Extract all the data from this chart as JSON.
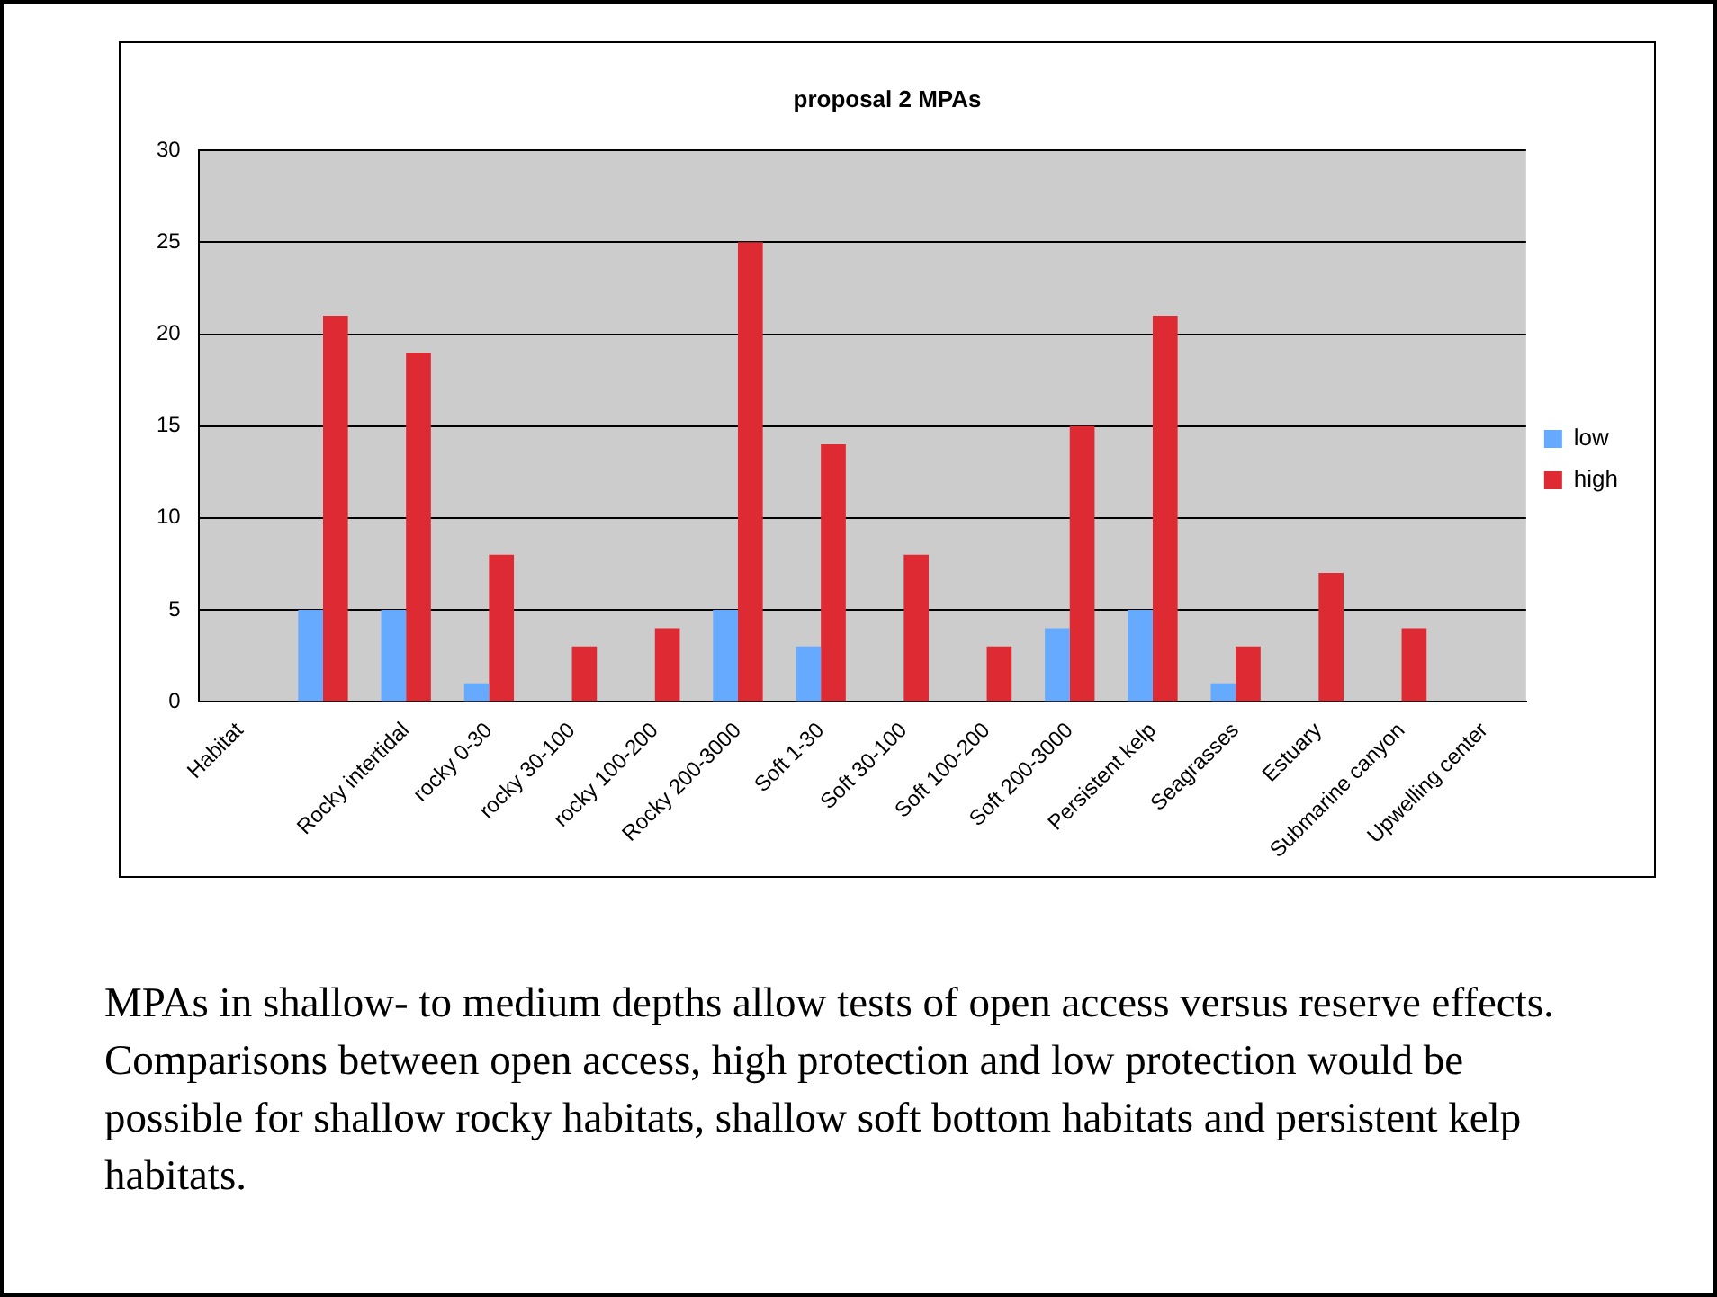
{
  "chart_data": {
    "type": "bar",
    "title": "proposal 2 MPAs",
    "categories": [
      "Habitat",
      null,
      "Rocky intertidal",
      "rocky 0-30",
      "rocky 30-100",
      "rocky 100-200",
      "Rocky 200-3000",
      "Soft 1-30",
      "Soft 30-100",
      "Soft 100-200",
      "Soft 200-3000",
      "Persistent kelp",
      "Seagrasses",
      "Estuary",
      "Submarine canyon",
      "Upwelling center"
    ],
    "series": [
      {
        "name": "low",
        "color": "#66aaff",
        "values": [
          null,
          5,
          5,
          1,
          0,
          0,
          5,
          3,
          0,
          0,
          4,
          5,
          1,
          0,
          0,
          null
        ]
      },
      {
        "name": "high",
        "color": "#dd2a33",
        "values": [
          null,
          21,
          19,
          8,
          3,
          4,
          25,
          14,
          8,
          3,
          15,
          21,
          3,
          7,
          4,
          null
        ]
      }
    ],
    "ylim": [
      0,
      30
    ],
    "yticks": [
      0,
      5,
      10,
      15,
      20,
      25,
      30
    ],
    "grid": "y",
    "legend": "right",
    "annotations": [
      "MPAs in shallow- to medium depths allow tests of open access versus reserve effects. Comparisons between open access, high protection and low protection would be possible for shallow rocky habitats, shallow soft bottom habitats and persistent kelp habitats."
    ]
  }
}
